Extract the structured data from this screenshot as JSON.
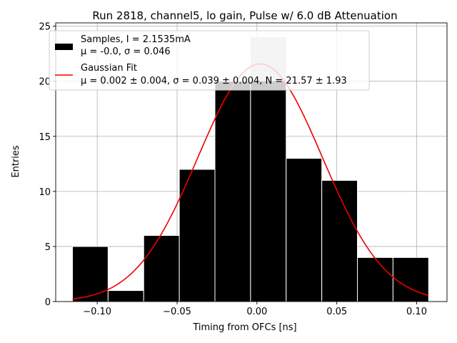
{
  "chart_data": {
    "type": "bar",
    "title": "Run 2818, channel5, lo gain, Pulse w/ 6.0 dB Attenuation",
    "xlabel": "Timing from OFCs [ns]",
    "ylabel": "Entries",
    "xlim": [
      -0.126,
      0.119
    ],
    "ylim": [
      0,
      25.3
    ],
    "xticks": [
      -0.1,
      -0.05,
      0.0,
      0.05,
      0.1
    ],
    "xtick_labels": [
      "−0.10",
      "−0.05",
      "0.00",
      "0.05",
      "0.10"
    ],
    "yticks": [
      0,
      5,
      10,
      15,
      20,
      25
    ],
    "ytick_labels": [
      "0",
      "5",
      "10",
      "15",
      "20",
      "25"
    ],
    "grid": true,
    "histogram": {
      "bin_edges": [
        -0.1155,
        -0.0932,
        -0.0709,
        -0.0486,
        -0.0263,
        -0.004,
        0.0183,
        0.0406,
        0.0629,
        0.0852,
        0.1075
      ],
      "counts": [
        5,
        1,
        6,
        12,
        20,
        24,
        13,
        11,
        4,
        4
      ],
      "color": "#000000",
      "highlight_color": "#c8c8c8",
      "edge_color": "#ffffff"
    },
    "fit": {
      "name": "Gaussian Fit",
      "mu": 0.002,
      "sigma": 0.039,
      "N": 21.57,
      "x_range": [
        -0.1155,
        0.1075
      ],
      "color": "#ee0000"
    },
    "legend": {
      "position": "top-left",
      "entries": [
        {
          "line1": "Samples, I = 2.1535mA",
          "line2": "μ = -0.0, σ = 0.046"
        },
        {
          "line1": "Gaussian Fit",
          "line2": "μ = 0.002 ± 0.004, σ = 0.039 ± 0.004, N = 21.57 ± 1.93"
        }
      ]
    }
  }
}
